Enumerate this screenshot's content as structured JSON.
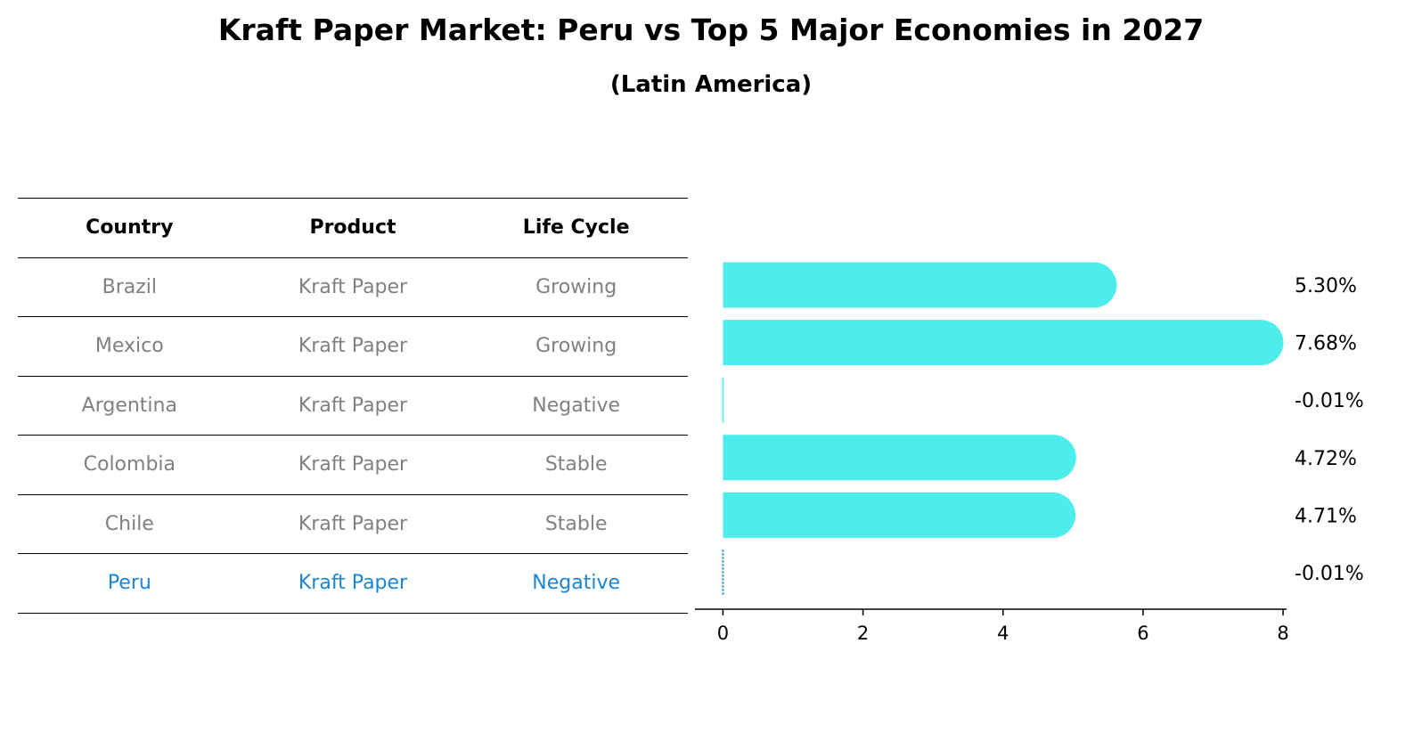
{
  "title": "Kraft Paper Market: Peru vs Top 5 Major Economies in 2027",
  "subtitle": "(Latin America)",
  "table": {
    "headers": [
      "Country",
      "Product",
      "Life Cycle"
    ],
    "rows": [
      [
        "Brazil",
        "Kraft Paper",
        "Growing"
      ],
      [
        "Mexico",
        "Kraft Paper",
        "Growing"
      ],
      [
        "Argentina",
        "Kraft Paper",
        "Negative"
      ],
      [
        "Colombia",
        "Kraft Paper",
        "Stable"
      ],
      [
        "Chile",
        "Kraft Paper",
        "Stable"
      ],
      [
        "Peru",
        "Kraft Paper",
        "Negative"
      ]
    ],
    "highlight_row": 5,
    "highlight_color": "#1a85d6",
    "text_color": "#808080"
  },
  "chart_data": {
    "type": "bar",
    "orientation": "horizontal",
    "categories": [
      "Brazil",
      "Mexico",
      "Argentina",
      "Colombia",
      "Chile",
      "Peru"
    ],
    "values": [
      5.3,
      7.68,
      -0.01,
      4.72,
      4.71,
      -0.01
    ],
    "value_labels": [
      "5.30%",
      "7.68%",
      "-0.01%",
      "4.72%",
      "4.71%",
      "-0.01%"
    ],
    "xlim": [
      -0.4,
      8.05
    ],
    "xticks": [
      0,
      2,
      4,
      6,
      8
    ],
    "bar_color": "#4eeded",
    "highlight_index": 5,
    "highlight_color": "#1a85d6",
    "grid": false
  }
}
